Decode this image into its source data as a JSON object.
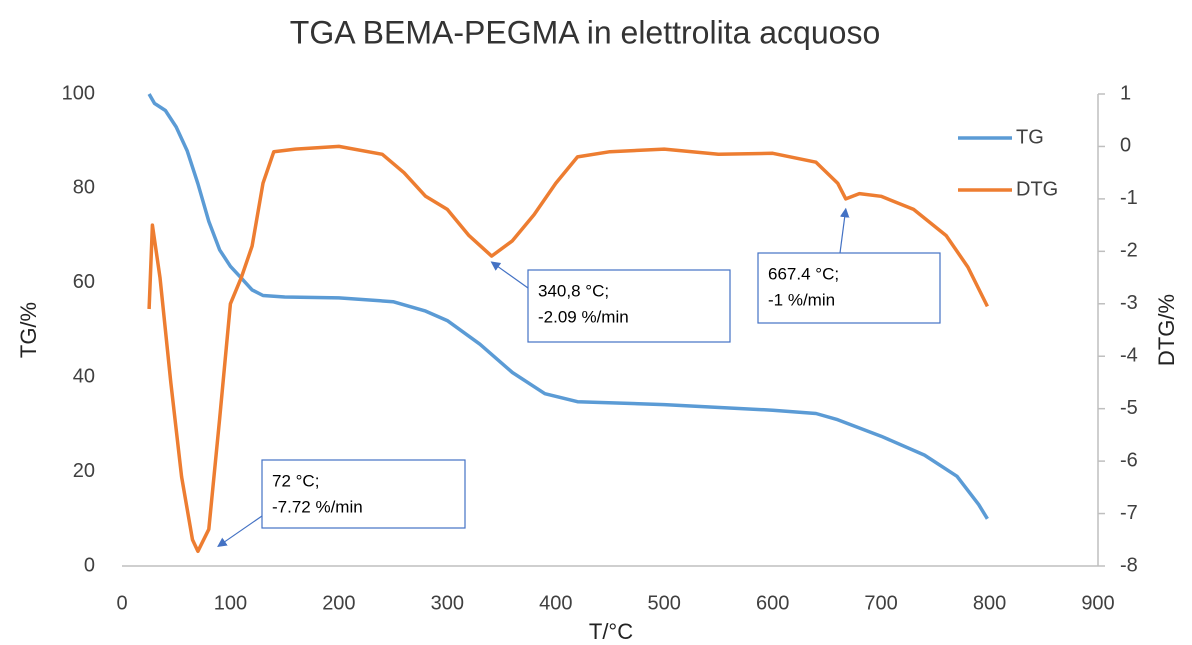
{
  "chart_data": {
    "type": "line",
    "title": "TGA BEMA-PEGMA in elettrolita acquoso",
    "xlabel": "T/°C",
    "ylabel": "TG/%",
    "y2label": "DTG/%",
    "xlim": [
      0,
      900
    ],
    "xticks": [
      0,
      100,
      200,
      300,
      400,
      500,
      600,
      700,
      800,
      900
    ],
    "ylim": [
      0,
      100
    ],
    "yticks": [
      0,
      20,
      40,
      60,
      80,
      100
    ],
    "y2lim": [
      -8,
      1
    ],
    "y2ticks": [
      -8,
      -7,
      -6,
      -5,
      -4,
      -3,
      -2,
      -1,
      0,
      1
    ],
    "grid": false,
    "legend": "right",
    "series": [
      {
        "name": "TG",
        "color": "#5b9bd5",
        "axis": "y",
        "x": [
          25,
          30,
          40,
          50,
          60,
          70,
          80,
          90,
          100,
          110,
          120,
          130,
          150,
          200,
          250,
          280,
          300,
          330,
          360,
          390,
          420,
          500,
          600,
          640,
          660,
          700,
          740,
          770,
          790,
          798
        ],
        "values": [
          100,
          98,
          96.5,
          93,
          88,
          81,
          73,
          67,
          63.5,
          61,
          58.5,
          57.3,
          57,
          56.8,
          56,
          54,
          52,
          47,
          41,
          36.5,
          34.8,
          34.2,
          33,
          32.3,
          31,
          27.5,
          23.5,
          19,
          13,
          10
        ]
      },
      {
        "name": "DTG",
        "color": "#ed7d31",
        "axis": "y2",
        "x": [
          25,
          28,
          35,
          45,
          55,
          65,
          70,
          80,
          90,
          100,
          110,
          120,
          130,
          140,
          160,
          200,
          240,
          260,
          280,
          300,
          320,
          340.8,
          360,
          380,
          400,
          420,
          450,
          500,
          550,
          600,
          640,
          660,
          667.4,
          680,
          700,
          730,
          760,
          780,
          798
        ],
        "values": [
          -3.1,
          -1.5,
          -2.5,
          -4.5,
          -6.3,
          -7.5,
          -7.72,
          -7.3,
          -5.2,
          -3,
          -2.5,
          -1.9,
          -0.7,
          -0.1,
          -0.05,
          0,
          -0.15,
          -0.5,
          -0.95,
          -1.2,
          -1.7,
          -2.09,
          -1.8,
          -1.3,
          -0.7,
          -0.2,
          -0.1,
          -0.05,
          -0.15,
          -0.13,
          -0.3,
          -0.7,
          -1,
          -0.9,
          -0.95,
          -1.2,
          -1.7,
          -2.3,
          -3.05
        ]
      }
    ],
    "annotations": [
      {
        "lines": [
          "72 °C;",
          "-7.72 %/min"
        ],
        "x": 72,
        "y": -7.72
      },
      {
        "lines": [
          "340,8 °C;",
          "-2.09 %/min"
        ],
        "x": 340.8,
        "y": -2.09
      },
      {
        "lines": [
          "667.4 °C;",
          "-1 %/min"
        ],
        "x": 667.4,
        "y": -1
      }
    ]
  }
}
